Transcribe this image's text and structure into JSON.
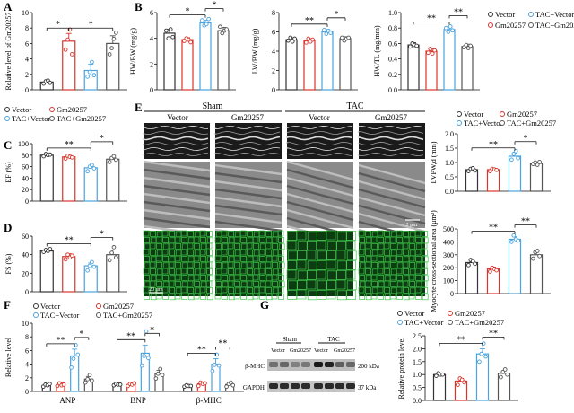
{
  "colors": {
    "vector": "#333333",
    "gm": "#d9342b",
    "tac": "#4aa3df",
    "tacgm": "#555555",
    "echo_bg": "#1a1a1a",
    "em_bg": "#8a8a8a",
    "if_bg": "#0d3b12",
    "if_fg": "#3fc84a"
  },
  "legend_labels": {
    "vector": "Vector",
    "gm": "Gm20257",
    "tac": "TAC+Vector",
    "tacgm": "TAC+Gm20257"
  },
  "panels": {
    "A": "A",
    "B": "B",
    "C": "C",
    "D": "D",
    "E": "E",
    "F": "F",
    "G": "G"
  },
  "images": {
    "sham": "Sham",
    "tac": "TAC",
    "vector": "Vector",
    "gm": "Gm20257",
    "scale_bar_em": "2 μm",
    "scale_bar_if": "20 μm"
  },
  "western": {
    "sham": "Sham",
    "tac": "TAC",
    "vector": "Vector",
    "gm": "Gm20257",
    "bands": [
      {
        "name": "β-MHC",
        "kda": "200 kDa"
      },
      {
        "name": "GAPDH",
        "kda": "37 kDa"
      }
    ]
  },
  "chart_data": [
    {
      "id": "A",
      "type": "bar",
      "ylabel": "Relative level of Gm20257",
      "ylim": [
        0,
        10
      ],
      "yticks": [
        "0",
        "2",
        "4",
        "6",
        "8",
        "10"
      ],
      "values": [
        1.0,
        6.3,
        2.5,
        6.0
      ],
      "errors": [
        0.2,
        1.0,
        0.8,
        1.0
      ],
      "points": [
        [
          0.8,
          1.1,
          1.2,
          0.9
        ],
        [
          5.2,
          6.5,
          7.8,
          4.6
        ],
        [
          1.7,
          2.3,
          3.6,
          1.9
        ],
        [
          4.6,
          5.4,
          6.6,
          7.4
        ]
      ],
      "sig": [
        {
          "from": 0,
          "to": 1,
          "label": "*",
          "level": 0
        },
        {
          "from": 1,
          "to": 3,
          "label": "*",
          "level": 0
        }
      ]
    },
    {
      "id": "B1",
      "type": "bar",
      "ylabel": "HW/BW (mg/g)",
      "ylim": [
        0,
        6
      ],
      "yticks": [
        "0",
        "2",
        "4",
        "6"
      ],
      "values": [
        4.4,
        3.9,
        5.2,
        4.6
      ],
      "errors": [
        0.3,
        0.15,
        0.2,
        0.25
      ],
      "points": [
        [
          4.6,
          4.0,
          4.7,
          4.1
        ],
        [
          3.8,
          4.0,
          3.9,
          3.7
        ],
        [
          5.4,
          5.0,
          5.1,
          5.5
        ],
        [
          4.9,
          4.4,
          4.6,
          4.7
        ]
      ],
      "sig": [
        {
          "from": 0,
          "to": 2,
          "label": "*",
          "level": 0
        },
        {
          "from": 2,
          "to": 3,
          "label": "*",
          "level": 1
        }
      ]
    },
    {
      "id": "B2",
      "type": "bar",
      "ylabel": "LW/BW (mg/g)",
      "ylim": [
        0,
        8
      ],
      "yticks": [
        "0",
        "2",
        "4",
        "6",
        "8"
      ],
      "values": [
        5.2,
        5.1,
        6.0,
        5.3
      ],
      "errors": [
        0.2,
        0.2,
        0.25,
        0.2
      ],
      "points": [
        [
          5.1,
          5.4,
          5.0,
          5.3
        ],
        [
          4.9,
          5.3,
          5.0,
          5.2
        ],
        [
          6.2,
          5.8,
          6.1,
          5.9
        ],
        [
          5.4,
          5.1,
          5.3,
          5.4
        ]
      ],
      "sig": [
        {
          "from": 0,
          "to": 2,
          "label": "**",
          "level": 0
        },
        {
          "from": 2,
          "to": 3,
          "label": "*",
          "level": 1
        }
      ]
    },
    {
      "id": "B3",
      "type": "bar",
      "ylabel": "HW/TL (mg/mm)",
      "ylim": [
        0,
        1.0
      ],
      "yticks": [
        "0.0",
        "0.2",
        "0.4",
        "0.6",
        "0.8",
        "1.0"
      ],
      "values": [
        0.58,
        0.5,
        0.78,
        0.56
      ],
      "errors": [
        0.03,
        0.03,
        0.03,
        0.03
      ],
      "points": [
        [
          0.56,
          0.6,
          0.58,
          0.57
        ],
        [
          0.48,
          0.53,
          0.47,
          0.51
        ],
        [
          0.8,
          0.75,
          0.82,
          0.77
        ],
        [
          0.55,
          0.58,
          0.54,
          0.57
        ]
      ],
      "sig": [
        {
          "from": 0,
          "to": 2,
          "label": "**",
          "level": 0
        },
        {
          "from": 2,
          "to": 3,
          "label": "**",
          "level": 1
        }
      ]
    },
    {
      "id": "C",
      "type": "bar",
      "ylabel": "EF (%)",
      "ylim": [
        0,
        100
      ],
      "yticks": [
        "0",
        "20",
        "40",
        "60",
        "80",
        "100"
      ],
      "values": [
        80,
        77,
        58,
        73
      ],
      "errors": [
        3,
        3,
        4,
        4
      ],
      "points": [
        [
          78,
          82,
          80,
          81
        ],
        [
          74,
          79,
          77,
          76
        ],
        [
          52,
          60,
          63,
          57
        ],
        [
          68,
          75,
          78,
          72
        ]
      ],
      "sig": [
        {
          "from": 0,
          "to": 2,
          "label": "**",
          "level": 0
        },
        {
          "from": 2,
          "to": 3,
          "label": "*",
          "level": 1
        }
      ]
    },
    {
      "id": "D",
      "type": "bar",
      "ylabel": "FS (%)",
      "ylim": [
        0,
        60
      ],
      "yticks": [
        "0",
        "20",
        "40",
        "60"
      ],
      "values": [
        44,
        38,
        28,
        40
      ],
      "errors": [
        2,
        3,
        3,
        5
      ],
      "points": [
        [
          43,
          45,
          44,
          46
        ],
        [
          35,
          40,
          37,
          39
        ],
        [
          23,
          28,
          32,
          27
        ],
        [
          34,
          42,
          48,
          37
        ]
      ],
      "sig": [
        {
          "from": 0,
          "to": 2,
          "label": "**",
          "level": 0
        },
        {
          "from": 2,
          "to": 3,
          "label": "*",
          "level": 1
        }
      ]
    },
    {
      "id": "E1",
      "type": "bar",
      "ylabel": "LVPW,d (mm)",
      "ylim": [
        0,
        2.0
      ],
      "yticks": [
        "0.0",
        "0.5",
        "1.0",
        "1.5",
        "2.0"
      ],
      "values": [
        0.75,
        0.75,
        1.22,
        0.97
      ],
      "errors": [
        0.06,
        0.05,
        0.1,
        0.05
      ],
      "points": [
        [
          0.7,
          0.78,
          0.8,
          0.72
        ],
        [
          0.7,
          0.78,
          0.76,
          0.74
        ],
        [
          1.1,
          1.3,
          1.4,
          1.15
        ],
        [
          0.95,
          1.0,
          0.92,
          1.02
        ]
      ],
      "sig": [
        {
          "from": 0,
          "to": 2,
          "label": "**",
          "level": 0
        },
        {
          "from": 2,
          "to": 3,
          "label": "*",
          "level": 1
        }
      ]
    },
    {
      "id": "E2",
      "type": "bar",
      "ylabel": "Myocyte cross-sectional area (μm²)",
      "ylim": [
        0,
        500
      ],
      "yticks": [
        "0",
        "100",
        "200",
        "300",
        "400",
        "500"
      ],
      "values": [
        240,
        190,
        420,
        300
      ],
      "errors": [
        20,
        15,
        20,
        30
      ],
      "points": [
        [
          220,
          260,
          250,
          230
        ],
        [
          170,
          200,
          190,
          180
        ],
        [
          400,
          450,
          420,
          410
        ],
        [
          270,
          320,
          330,
          290
        ]
      ],
      "sig": [
        {
          "from": 0,
          "to": 2,
          "label": "**",
          "level": 0
        },
        {
          "from": 2,
          "to": 3,
          "label": "**",
          "level": 1
        }
      ]
    },
    {
      "id": "F",
      "type": "bar",
      "ylabel": "Relative level",
      "ylim": [
        0,
        10
      ],
      "yticks": [
        "0",
        "2",
        "4",
        "6",
        "8",
        "10"
      ],
      "categories": [
        "ANP",
        "BNP",
        "β-MHC"
      ],
      "values": [
        [
          0.9,
          1.0,
          5.2,
          1.8
        ],
        [
          1.0,
          1.0,
          5.6,
          2.6
        ],
        [
          0.8,
          1.1,
          4.0,
          1.0
        ]
      ],
      "errors": [
        [
          0.2,
          0.3,
          1.0,
          0.4
        ],
        [
          0.2,
          0.2,
          1.2,
          0.5
        ],
        [
          0.2,
          0.3,
          0.8,
          0.3
        ]
      ],
      "points": [
        [
          [
            0.7,
            1.0,
            0.9,
            1.1
          ],
          [
            0.8,
            1.2,
            0.9,
            1.0
          ],
          [
            3.5,
            4.8,
            6.8,
            5.4
          ],
          [
            1.3,
            1.8,
            2.4,
            1.6
          ]
        ],
        [
          [
            0.9,
            1.1,
            1.0,
            1.0
          ],
          [
            0.8,
            1.1,
            1.0,
            1.2
          ],
          [
            3.8,
            5.2,
            8.8,
            4.9
          ],
          [
            1.9,
            2.6,
            3.3,
            2.4
          ]
        ],
        [
          [
            0.7,
            0.9,
            0.8,
            0.8
          ],
          [
            0.8,
            1.3,
            1.1,
            1.2
          ],
          [
            3.0,
            3.9,
            5.4,
            3.8
          ],
          [
            0.7,
            1.1,
            1.3,
            0.9
          ]
        ]
      ],
      "sig": [
        [
          {
            "from": 0,
            "to": 2,
            "label": "**"
          },
          {
            "from": 2,
            "to": 3,
            "label": "*"
          }
        ],
        [
          {
            "from": 0,
            "to": 2,
            "label": "**"
          },
          {
            "from": 2,
            "to": 3,
            "label": "*"
          }
        ],
        [
          {
            "from": 0,
            "to": 2,
            "label": "**"
          },
          {
            "from": 2,
            "to": 3,
            "label": "**"
          }
        ]
      ]
    },
    {
      "id": "G",
      "type": "bar",
      "ylabel": "Relative protein level",
      "ylim": [
        0,
        2.5
      ],
      "yticks": [
        "0.0",
        "0.5",
        "1.0",
        "1.5",
        "2.0",
        "2.5"
      ],
      "values": [
        1.0,
        0.75,
        1.8,
        1.05
      ],
      "errors": [
        0.05,
        0.1,
        0.2,
        0.1
      ],
      "points": [
        [
          0.95,
          1.05,
          1.0,
          1.0
        ],
        [
          0.6,
          0.85,
          0.8,
          0.7
        ],
        [
          1.5,
          1.8,
          2.2,
          1.7
        ],
        [
          0.9,
          1.1,
          1.2,
          1.0
        ]
      ],
      "sig": [
        {
          "from": 0,
          "to": 2,
          "label": "**",
          "level": 0
        },
        {
          "from": 2,
          "to": 3,
          "label": "**",
          "level": 1
        }
      ]
    }
  ]
}
